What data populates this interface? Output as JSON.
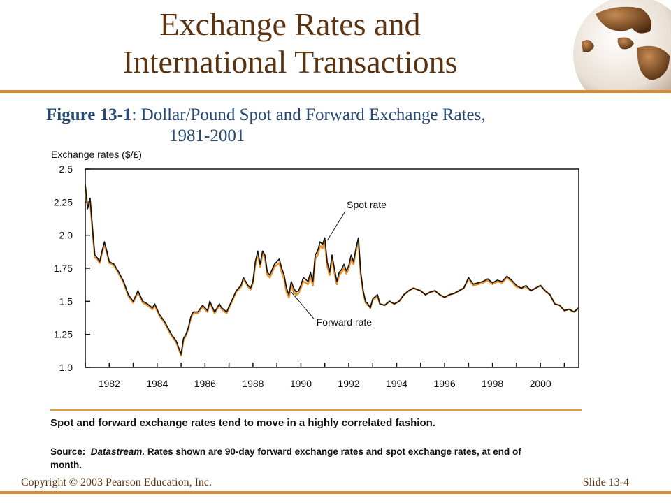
{
  "slide": {
    "title_line1": "Exchange Rates and",
    "title_line2": "International Transactions",
    "figure_label": "Figure 13-1",
    "figure_title_line1": ": Dollar/Pound Spot and Forward Exchange Rates,",
    "figure_title_line2": "1981-2001",
    "note": "Spot and forward exchange rates tend to move in a highly correlated fashion.",
    "source_label": "Source:",
    "source_name": "Datastream.",
    "source_text": " Rates shown are 90-day forward exchange rates and spot exchange rates, at end of month.",
    "copyright": "Copyright © 2003 Pearson Education, Inc.",
    "slide_number": "Slide 13-4"
  },
  "colors": {
    "title": "#5b3311",
    "accent": "#d98a34",
    "caption": "#274a76",
    "spot": "#111111",
    "forward": "#e8922c"
  },
  "chart_data": {
    "type": "line",
    "ylabel": "Exchange rates ($/£)",
    "xlabel": "",
    "xlim": [
      1981,
      2001.6
    ],
    "ylim": [
      1.0,
      2.5
    ],
    "x_ticks": [
      1982,
      1984,
      1986,
      1988,
      1990,
      1992,
      1994,
      1996,
      1998,
      2000
    ],
    "y_ticks": [
      1.0,
      1.25,
      1.5,
      1.75,
      2.0,
      2.25,
      2.5
    ],
    "y_tick_labels": [
      "1.0",
      "1.25",
      "1.5",
      "1.75",
      "2.0",
      "2.25",
      "2.5"
    ],
    "annotations": [
      {
        "text": "Spot rate",
        "series": "spot",
        "x": 1991.1,
        "y": 1.96
      },
      {
        "text": "Forward rate",
        "series": "forward",
        "x": 1989.6,
        "y": 1.57
      }
    ],
    "series": [
      {
        "key": "spot",
        "x": [
          1981.0,
          1981.1,
          1981.2,
          1981.3,
          1981.4,
          1981.5,
          1981.6,
          1981.7,
          1981.8,
          1981.9,
          1982.0,
          1982.2,
          1982.3,
          1982.4,
          1982.6,
          1982.8,
          1983.0,
          1983.2,
          1983.4,
          1983.6,
          1983.8,
          1983.9,
          1984.1,
          1984.3,
          1984.6,
          1984.8,
          1985.0,
          1985.1,
          1985.2,
          1985.3,
          1985.4,
          1985.5,
          1985.7,
          1985.9,
          1986.1,
          1986.2,
          1986.4,
          1986.6,
          1986.7,
          1986.9,
          1987.1,
          1987.3,
          1987.5,
          1987.6,
          1987.8,
          1987.9,
          1988.0,
          1988.1,
          1988.2,
          1988.3,
          1988.4,
          1988.5,
          1988.6,
          1988.7,
          1988.9,
          1989.1,
          1989.2,
          1989.3,
          1989.4,
          1989.5,
          1989.6,
          1989.7,
          1989.8,
          1989.9,
          1990.0,
          1990.1,
          1990.3,
          1990.4,
          1990.5,
          1990.6,
          1990.7,
          1990.8,
          1990.9,
          1991.0,
          1991.1,
          1991.2,
          1991.3,
          1991.4,
          1991.5,
          1991.6,
          1991.7,
          1991.8,
          1991.9,
          1992.0,
          1992.1,
          1992.2,
          1992.3,
          1992.4,
          1992.5,
          1992.6,
          1992.7,
          1992.8,
          1992.9,
          1993.0,
          1993.2,
          1993.3,
          1993.5,
          1993.7,
          1993.9,
          1994.1,
          1994.3,
          1994.5,
          1994.7,
          1995.0,
          1995.2,
          1995.4,
          1995.6,
          1995.8,
          1996.0,
          1996.2,
          1996.4,
          1996.6,
          1996.8,
          1997.0,
          1997.2,
          1997.4,
          1997.6,
          1997.8,
          1998.0,
          1998.2,
          1998.4,
          1998.6,
          1998.8,
          1999.0,
          1999.2,
          1999.4,
          1999.6,
          1999.8,
          2000.0,
          2000.2,
          2000.4,
          2000.6,
          2000.8,
          2001.0,
          2001.2,
          2001.4,
          2001.6
        ],
        "y": [
          2.38,
          2.2,
          2.28,
          2.05,
          1.85,
          1.83,
          1.8,
          1.88,
          1.95,
          1.88,
          1.8,
          1.78,
          1.75,
          1.72,
          1.65,
          1.55,
          1.5,
          1.58,
          1.5,
          1.48,
          1.45,
          1.48,
          1.4,
          1.35,
          1.25,
          1.2,
          1.1,
          1.22,
          1.25,
          1.3,
          1.38,
          1.42,
          1.42,
          1.47,
          1.43,
          1.5,
          1.42,
          1.48,
          1.45,
          1.42,
          1.5,
          1.58,
          1.62,
          1.68,
          1.62,
          1.6,
          1.65,
          1.8,
          1.88,
          1.78,
          1.88,
          1.85,
          1.72,
          1.7,
          1.78,
          1.82,
          1.75,
          1.7,
          1.6,
          1.55,
          1.65,
          1.6,
          1.57,
          1.58,
          1.62,
          1.68,
          1.65,
          1.72,
          1.65,
          1.85,
          1.88,
          1.95,
          1.93,
          1.98,
          1.8,
          1.72,
          1.85,
          1.75,
          1.65,
          1.72,
          1.74,
          1.78,
          1.73,
          1.77,
          1.85,
          1.8,
          1.9,
          1.98,
          1.72,
          1.58,
          1.5,
          1.48,
          1.45,
          1.52,
          1.55,
          1.48,
          1.47,
          1.5,
          1.48,
          1.5,
          1.55,
          1.58,
          1.6,
          1.58,
          1.55,
          1.57,
          1.58,
          1.55,
          1.53,
          1.55,
          1.56,
          1.58,
          1.6,
          1.68,
          1.63,
          1.64,
          1.65,
          1.67,
          1.64,
          1.66,
          1.65,
          1.69,
          1.66,
          1.62,
          1.6,
          1.62,
          1.58,
          1.6,
          1.62,
          1.58,
          1.55,
          1.48,
          1.47,
          1.43,
          1.44,
          1.42,
          1.45
        ]
      },
      {
        "key": "forward",
        "x": [
          1981.0,
          1981.1,
          1981.2,
          1981.3,
          1981.4,
          1981.5,
          1981.6,
          1981.7,
          1981.8,
          1981.9,
          1982.0,
          1982.2,
          1982.3,
          1982.4,
          1982.6,
          1982.8,
          1983.0,
          1983.2,
          1983.4,
          1983.6,
          1983.8,
          1983.9,
          1984.1,
          1984.3,
          1984.6,
          1984.8,
          1985.0,
          1985.1,
          1985.2,
          1985.3,
          1985.4,
          1985.5,
          1985.7,
          1985.9,
          1986.1,
          1986.2,
          1986.4,
          1986.6,
          1986.7,
          1986.9,
          1987.1,
          1987.3,
          1987.5,
          1987.6,
          1987.8,
          1987.9,
          1988.0,
          1988.1,
          1988.2,
          1988.3,
          1988.4,
          1988.5,
          1988.6,
          1988.7,
          1988.9,
          1989.1,
          1989.2,
          1989.3,
          1989.4,
          1989.5,
          1989.6,
          1989.7,
          1989.8,
          1989.9,
          1990.0,
          1990.1,
          1990.3,
          1990.4,
          1990.5,
          1990.6,
          1990.7,
          1990.8,
          1990.9,
          1991.0,
          1991.1,
          1991.2,
          1991.3,
          1991.4,
          1991.5,
          1991.6,
          1991.7,
          1991.8,
          1991.9,
          1992.0,
          1992.1,
          1992.2,
          1992.3,
          1992.4,
          1992.5,
          1992.6,
          1992.7,
          1992.8,
          1992.9,
          1993.0,
          1993.2,
          1993.3,
          1993.5,
          1993.7,
          1993.9,
          1994.1,
          1994.3,
          1994.5,
          1994.7,
          1995.0,
          1995.2,
          1995.4,
          1995.6,
          1995.8,
          1996.0,
          1996.2,
          1996.4,
          1996.6,
          1996.8,
          1997.0,
          1997.2,
          1997.4,
          1997.6,
          1997.8,
          1998.0,
          1998.2,
          1998.4,
          1998.6,
          1998.8,
          1999.0,
          1999.2,
          1999.4,
          1999.6,
          1999.8,
          2000.0,
          2000.2,
          2000.4,
          2000.6,
          2000.8,
          2001.0,
          2001.2,
          2001.4,
          2001.6
        ],
        "y": [
          2.37,
          2.21,
          2.26,
          2.04,
          1.83,
          1.82,
          1.79,
          1.87,
          1.93,
          1.87,
          1.79,
          1.77,
          1.74,
          1.71,
          1.64,
          1.54,
          1.49,
          1.57,
          1.49,
          1.47,
          1.44,
          1.47,
          1.39,
          1.34,
          1.24,
          1.19,
          1.09,
          1.21,
          1.24,
          1.29,
          1.37,
          1.41,
          1.41,
          1.46,
          1.42,
          1.49,
          1.41,
          1.47,
          1.44,
          1.41,
          1.49,
          1.57,
          1.61,
          1.67,
          1.61,
          1.59,
          1.64,
          1.78,
          1.86,
          1.76,
          1.86,
          1.83,
          1.7,
          1.68,
          1.76,
          1.79,
          1.72,
          1.67,
          1.57,
          1.53,
          1.62,
          1.57,
          1.55,
          1.56,
          1.6,
          1.65,
          1.63,
          1.69,
          1.62,
          1.82,
          1.85,
          1.92,
          1.9,
          1.95,
          1.77,
          1.7,
          1.82,
          1.72,
          1.63,
          1.7,
          1.72,
          1.75,
          1.71,
          1.75,
          1.82,
          1.78,
          1.88,
          1.96,
          1.7,
          1.57,
          1.49,
          1.47,
          1.45,
          1.51,
          1.54,
          1.48,
          1.47,
          1.5,
          1.48,
          1.5,
          1.55,
          1.58,
          1.6,
          1.58,
          1.55,
          1.57,
          1.58,
          1.55,
          1.53,
          1.55,
          1.56,
          1.58,
          1.6,
          1.67,
          1.62,
          1.63,
          1.64,
          1.66,
          1.63,
          1.65,
          1.64,
          1.68,
          1.65,
          1.61,
          1.6,
          1.61,
          1.58,
          1.6,
          1.62,
          1.58,
          1.55,
          1.48,
          1.47,
          1.43,
          1.44,
          1.42,
          1.45
        ]
      }
    ]
  }
}
